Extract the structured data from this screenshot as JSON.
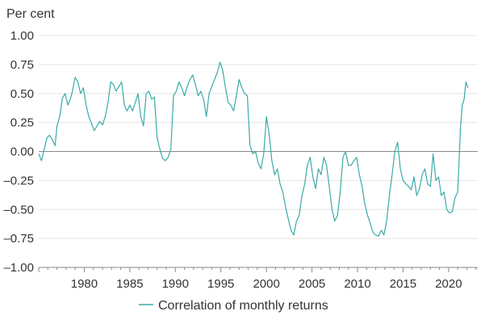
{
  "chart_data": {
    "type": "line",
    "y_axis_title": "Per cent",
    "ylim": [
      -1.0,
      1.0
    ],
    "y_ticks": [
      1.0,
      0.75,
      0.5,
      0.25,
      0.0,
      -0.25,
      -0.5,
      -0.75,
      -1.0
    ],
    "y_tick_labels": [
      "1.00",
      "0.75",
      "0.50",
      "0.25",
      "0.00",
      "–0.25",
      "–0.50",
      "–0.75",
      "–1.00"
    ],
    "xlim": [
      1975.0,
      2023.2
    ],
    "x_ticks": [
      1980,
      1985,
      1990,
      1995,
      2000,
      2005,
      2010,
      2015,
      2020
    ],
    "x_tick_labels": [
      "1980",
      "1985",
      "1990",
      "1995",
      "2000",
      "2005",
      "2010",
      "2015",
      "2020"
    ],
    "grid": true,
    "legend_position": "bottom-center",
    "series": [
      {
        "name": "Correlation of monthly returns",
        "color": "#3aaaa7",
        "x": [
          1975.0,
          1975.3,
          1975.6,
          1975.9,
          1976.2,
          1976.5,
          1976.8,
          1977.0,
          1977.3,
          1977.6,
          1977.9,
          1978.2,
          1978.5,
          1978.7,
          1979.0,
          1979.3,
          1979.6,
          1979.9,
          1980.2,
          1980.5,
          1980.8,
          1981.1,
          1981.4,
          1981.7,
          1982.0,
          1982.3,
          1982.6,
          1982.9,
          1983.2,
          1983.5,
          1983.8,
          1984.1,
          1984.4,
          1984.7,
          1985.0,
          1985.3,
          1985.6,
          1985.9,
          1986.2,
          1986.5,
          1986.8,
          1987.1,
          1987.4,
          1987.7,
          1988.0,
          1988.3,
          1988.6,
          1988.9,
          1989.2,
          1989.5,
          1989.8,
          1990.1,
          1990.4,
          1990.7,
          1991.0,
          1991.3,
          1991.6,
          1991.9,
          1992.2,
          1992.5,
          1992.8,
          1993.1,
          1993.4,
          1993.7,
          1994.0,
          1994.3,
          1994.6,
          1994.9,
          1995.2,
          1995.5,
          1995.8,
          1996.1,
          1996.4,
          1996.7,
          1997.0,
          1997.3,
          1997.6,
          1997.9,
          1998.2,
          1998.5,
          1998.8,
          1999.1,
          1999.4,
          1999.7,
          2000.0,
          2000.3,
          2000.6,
          2000.9,
          2001.2,
          2001.5,
          2001.8,
          2002.1,
          2002.4,
          2002.7,
          2003.0,
          2003.3,
          2003.6,
          2003.9,
          2004.2,
          2004.5,
          2004.8,
          2005.1,
          2005.4,
          2005.7,
          2006.0,
          2006.3,
          2006.6,
          2006.9,
          2007.2,
          2007.5,
          2007.8,
          2008.1,
          2008.4,
          2008.7,
          2009.0,
          2009.3,
          2009.6,
          2009.9,
          2010.2,
          2010.5,
          2010.8,
          2011.1,
          2011.4,
          2011.7,
          2012.0,
          2012.3,
          2012.6,
          2012.9,
          2013.2,
          2013.5,
          2013.8,
          2014.1,
          2014.4,
          2014.7,
          2015.0,
          2015.3,
          2015.6,
          2015.9,
          2016.2,
          2016.5,
          2016.8,
          2017.1,
          2017.4,
          2017.7,
          2018.0,
          2018.3,
          2018.6,
          2018.9,
          2019.2,
          2019.5,
          2019.8,
          2020.1,
          2020.4,
          2020.7,
          2021.0,
          2021.3,
          2021.5,
          2021.7,
          2021.9,
          2022.1
        ],
        "values": [
          -0.02,
          -0.08,
          0.02,
          0.12,
          0.14,
          0.1,
          0.05,
          0.22,
          0.3,
          0.46,
          0.5,
          0.4,
          0.46,
          0.52,
          0.64,
          0.6,
          0.5,
          0.55,
          0.4,
          0.3,
          0.24,
          0.18,
          0.22,
          0.26,
          0.23,
          0.3,
          0.42,
          0.6,
          0.58,
          0.52,
          0.56,
          0.6,
          0.4,
          0.35,
          0.4,
          0.35,
          0.42,
          0.5,
          0.3,
          0.22,
          0.5,
          0.52,
          0.45,
          0.47,
          0.12,
          0.02,
          -0.06,
          -0.08,
          -0.05,
          0.02,
          0.48,
          0.52,
          0.6,
          0.55,
          0.48,
          0.56,
          0.62,
          0.66,
          0.58,
          0.48,
          0.52,
          0.45,
          0.3,
          0.5,
          0.56,
          0.62,
          0.68,
          0.77,
          0.7,
          0.55,
          0.42,
          0.4,
          0.35,
          0.48,
          0.62,
          0.55,
          0.5,
          0.48,
          0.05,
          -0.02,
          0.0,
          -0.1,
          -0.15,
          -0.02,
          0.3,
          0.15,
          -0.08,
          -0.2,
          -0.15,
          -0.28,
          -0.35,
          -0.48,
          -0.58,
          -0.68,
          -0.72,
          -0.6,
          -0.55,
          -0.38,
          -0.28,
          -0.12,
          -0.05,
          -0.22,
          -0.32,
          -0.15,
          -0.2,
          -0.05,
          -0.12,
          -0.3,
          -0.5,
          -0.6,
          -0.55,
          -0.35,
          -0.05,
          0.0,
          -0.12,
          -0.12,
          -0.08,
          -0.05,
          -0.2,
          -0.3,
          -0.45,
          -0.55,
          -0.62,
          -0.7,
          -0.72,
          -0.73,
          -0.68,
          -0.72,
          -0.6,
          -0.38,
          -0.2,
          0.0,
          0.08,
          -0.15,
          -0.25,
          -0.28,
          -0.3,
          -0.33,
          -0.22,
          -0.38,
          -0.32,
          -0.2,
          -0.15,
          -0.28,
          -0.3,
          -0.02,
          -0.25,
          -0.22,
          -0.38,
          -0.35,
          -0.5,
          -0.53,
          -0.52,
          -0.4,
          -0.35,
          0.2,
          0.4,
          0.45,
          0.6,
          0.55
        ]
      }
    ]
  }
}
